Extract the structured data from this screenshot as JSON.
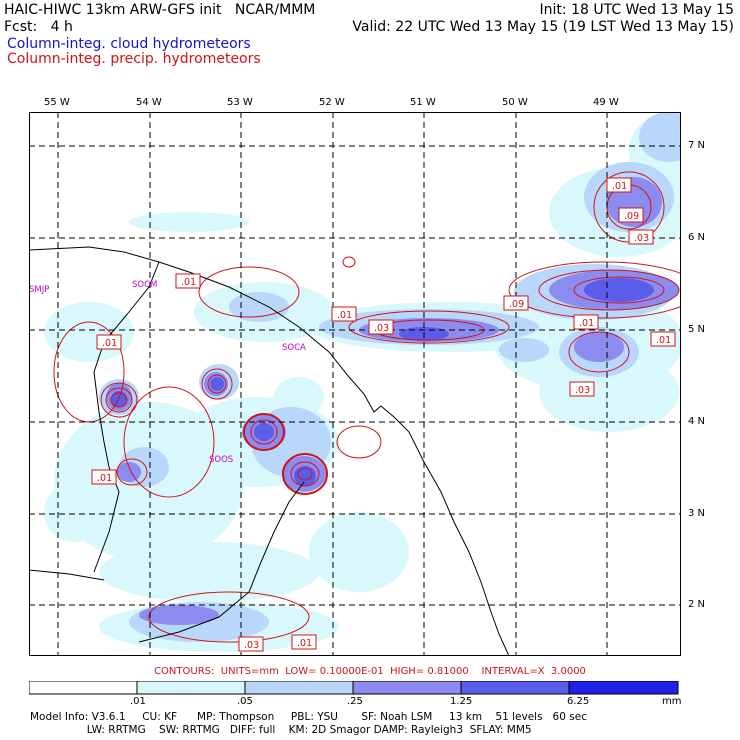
{
  "header": {
    "line1_left": "HAIC-HIWC 13km ARW-GFS init   NCAR/MMM",
    "line1_right": "Init: 18 UTC Wed 13 May 15",
    "line2_left": "Fcst:   4 h",
    "line2_right": "Valid: 22 UTC Wed 13 May 15 (19 LST Wed 13 May 15)",
    "line3": "Column-integ. cloud hydrometeors",
    "line4": "Column-integ. precip. hydrometeors",
    "line3_color": "#1414c8",
    "line4_color": "#d01414"
  },
  "map": {
    "lon_labels": [
      "55 W",
      "54 W",
      "53 W",
      "52 W",
      "51 W",
      "50 W",
      "49 W"
    ],
    "lat_labels": [
      "7 N",
      "6 N",
      "5 N",
      "4 N",
      "3 N",
      "2 N"
    ],
    "stations": [
      "SMJP",
      "SOCM",
      "SOCA",
      "SOOS"
    ],
    "contour_labels": [
      ".01",
      ".09",
      ".03",
      ".01",
      ".01",
      ".03",
      ".09",
      ".01",
      ".01",
      ".03",
      ".01",
      ".01",
      ".03",
      ".01"
    ]
  },
  "contours_line": {
    "label": "CONTOURS:",
    "units": "UNITS=mm",
    "low": "LOW= 0.10000E-01",
    "high": "HIGH= 0.81000",
    "interval": "INTERVAL=X  3.0000"
  },
  "colorbar": {
    "labels": [
      ".01",
      ".05",
      ".25",
      "1.25",
      "6.25",
      "mm"
    ],
    "colors": [
      "#ffffff",
      "#d8f8fc",
      "#b9d7fb",
      "#8c8cf0",
      "#5c5cea",
      "#2020e8"
    ]
  },
  "footer": {
    "line1": "Model Info: V3.6.1     CU: KF      MP: Thompson     PBL: YSU       SF: Noah LSM     13 km    51 levels   60 sec",
    "line2": "                 LW: RRTMG    SW: RRTMG   DIFF: full    KM: 2D Smagor DAMP: Rayleigh3  SFLAY: MM5"
  }
}
